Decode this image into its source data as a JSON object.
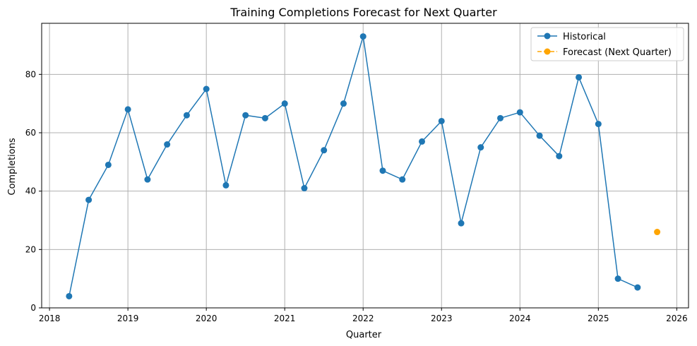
{
  "chart_data": {
    "type": "line",
    "title": "Training Completions Forecast for Next Quarter",
    "xlabel": "Quarter",
    "ylabel": "Completions",
    "xlim": [
      2017.9,
      2026.15
    ],
    "ylim": [
      0,
      97.5
    ],
    "xticks": [
      2018,
      2019,
      2020,
      2021,
      2022,
      2023,
      2024,
      2025,
      2026
    ],
    "yticks": [
      0,
      20,
      40,
      60,
      80
    ],
    "grid": true,
    "legend_position": "top-right",
    "series": [
      {
        "name": "Historical",
        "color": "#1f77b4",
        "line_style": "solid",
        "x": [
          "2018-04-01",
          "2018-07-01",
          "2018-10-01",
          "2019-01-01",
          "2019-04-01",
          "2019-07-01",
          "2019-10-01",
          "2020-01-01",
          "2020-04-01",
          "2020-07-01",
          "2020-10-01",
          "2021-01-01",
          "2021-04-01",
          "2021-07-01",
          "2021-10-01",
          "2022-01-01",
          "2022-04-01",
          "2022-07-01",
          "2022-10-01",
          "2023-01-01",
          "2023-04-01",
          "2023-07-01",
          "2023-10-01",
          "2024-01-01",
          "2024-04-01",
          "2024-07-01",
          "2024-10-01",
          "2025-01-01",
          "2025-04-01",
          "2025-07-01"
        ],
        "values": [
          4,
          37,
          49,
          68,
          44,
          56,
          66,
          75,
          42,
          66,
          65,
          70,
          41,
          54,
          70,
          93,
          47,
          44,
          57,
          64,
          29,
          55,
          65,
          67,
          59,
          52,
          79,
          63,
          10,
          7
        ]
      },
      {
        "name": "Forecast (Next Quarter)",
        "color": "#ffa500",
        "line_style": "dashed",
        "x": [
          "2025-10-01"
        ],
        "values": [
          26
        ]
      }
    ]
  }
}
